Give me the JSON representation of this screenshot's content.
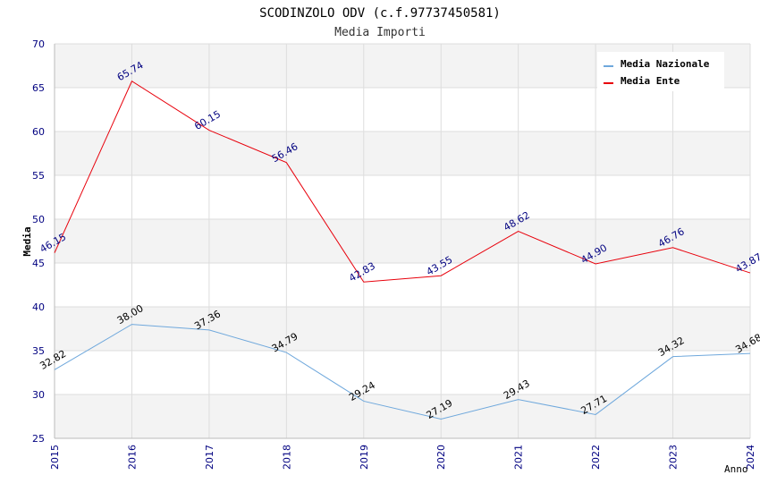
{
  "chart_data": {
    "type": "line",
    "title": "SCODINZOLO ODV (c.f.97737450581)",
    "subtitle": "Media Importi",
    "xlabel": "Anno",
    "ylabel": "Media",
    "categories": [
      "2015",
      "2016",
      "2017",
      "2018",
      "2019",
      "2020",
      "2021",
      "2022",
      "2023",
      "2024"
    ],
    "ylim": [
      25,
      70
    ],
    "yticks": [
      "25",
      "30",
      "35",
      "40",
      "45",
      "50",
      "55",
      "60",
      "65",
      "70"
    ],
    "grid": true,
    "legend_position": "top-right",
    "series": [
      {
        "name": "Media Nazionale",
        "color": "#6fa8dc",
        "label_color": "#000000",
        "values": [
          32.82,
          38.0,
          37.36,
          34.79,
          29.24,
          27.19,
          29.43,
          27.71,
          34.32,
          34.68
        ],
        "labels": [
          "32.82",
          "38.00",
          "37.36",
          "34.79",
          "29.24",
          "27.19",
          "29.43",
          "27.71",
          "34.32",
          "34.68"
        ]
      },
      {
        "name": "Media Ente",
        "color": "#e8000b",
        "label_color": "#000080",
        "values": [
          46.15,
          65.74,
          60.15,
          56.46,
          42.83,
          43.55,
          48.62,
          44.9,
          46.76,
          43.87
        ],
        "labels": [
          "46.15",
          "65.74",
          "60.15",
          "56.46",
          "42.83",
          "43.55",
          "48.62",
          "44.90",
          "46.76",
          "43.87"
        ]
      }
    ],
    "colors": {
      "axis_text": "#000080",
      "band": "#f3f3f3",
      "grid": "#dddddd"
    }
  }
}
